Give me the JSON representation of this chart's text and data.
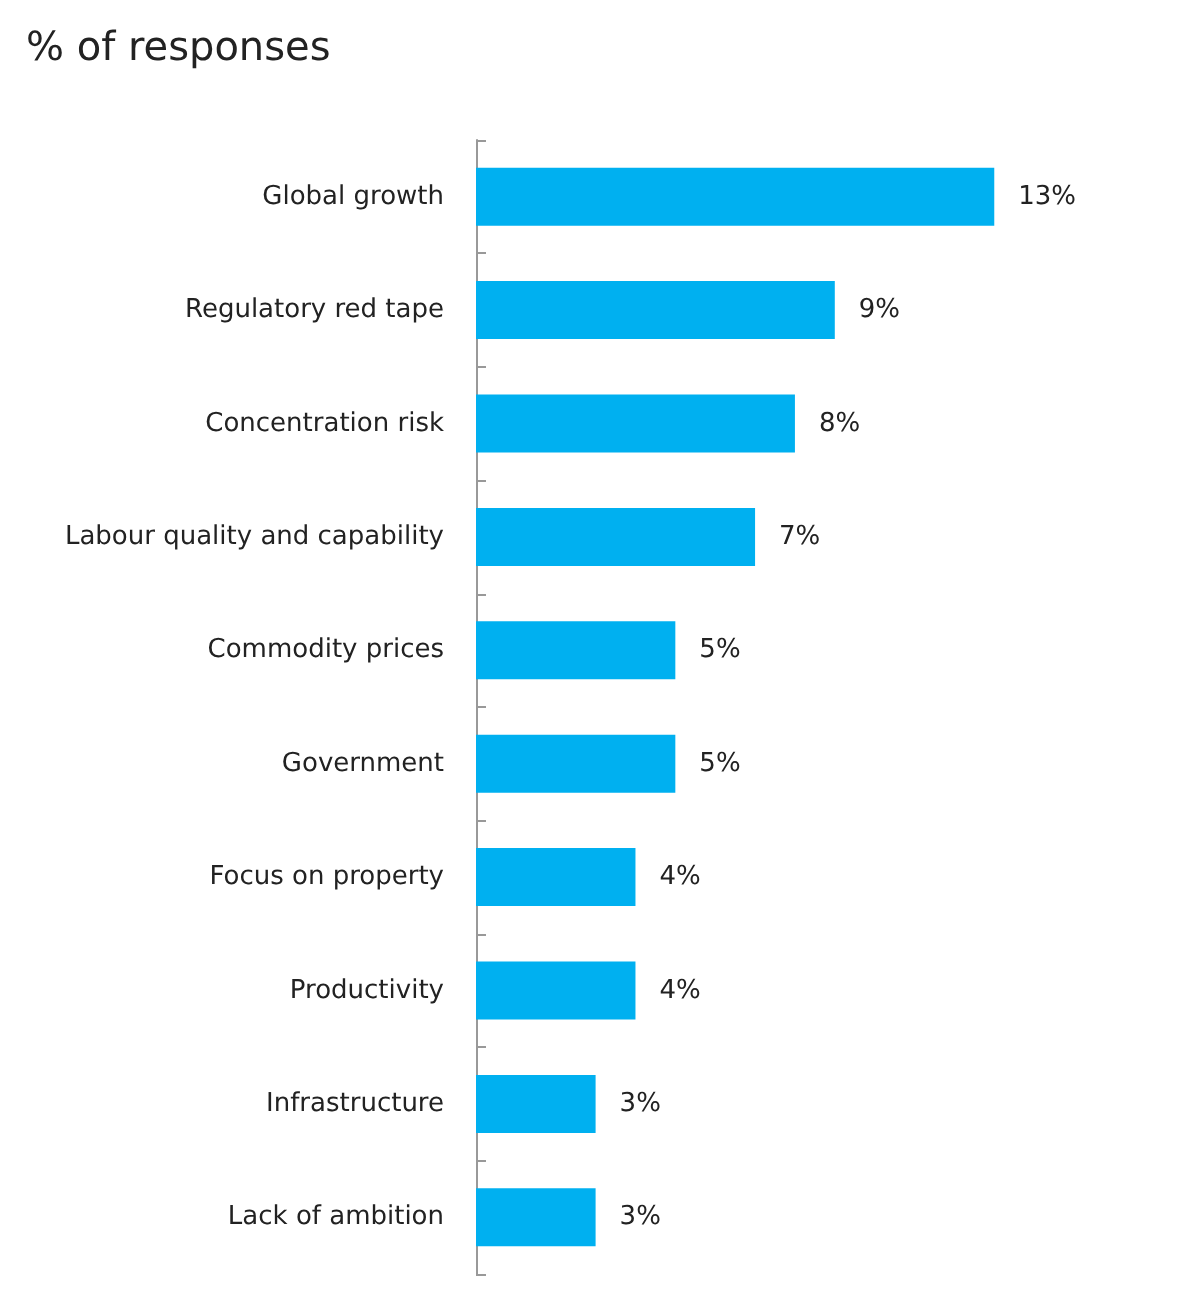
{
  "chart_data": {
    "type": "bar",
    "orientation": "horizontal",
    "title": "% of responses",
    "categories": [
      "Global growth",
      "Regulatory red tape",
      "Concentration risk",
      "Labour quality and capability",
      "Commodity prices",
      "Government",
      "Focus on property",
      "Productivity",
      "Infrastructure",
      "Lack of ambition"
    ],
    "values": [
      13,
      9,
      8,
      7,
      5,
      5,
      4,
      4,
      3,
      3
    ],
    "value_labels": [
      "13%",
      "9%",
      "8%",
      "7%",
      "5%",
      "5%",
      "4%",
      "4%",
      "3%",
      "3%"
    ],
    "color": "#00b0f0"
  }
}
